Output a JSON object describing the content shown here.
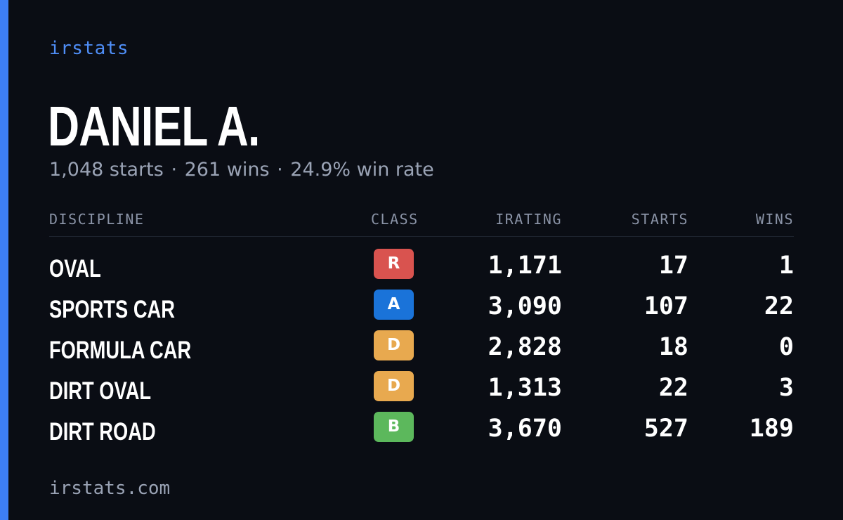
{
  "brand": "irstats",
  "driver": {
    "name": "DANIEL A.",
    "starts": "1,048 starts",
    "wins": "261 wins",
    "win_rate": "24.9% win rate",
    "separator": "·"
  },
  "table": {
    "headers": {
      "discipline": "DISCIPLINE",
      "class": "CLASS",
      "irating": "IRATING",
      "starts": "STARTS",
      "wins": "WINS"
    },
    "rows": [
      {
        "discipline": "OVAL",
        "class": "R",
        "class_color": "#d9534f",
        "irating": "1,171",
        "starts": "17",
        "wins": "1"
      },
      {
        "discipline": "SPORTS CAR",
        "class": "A",
        "class_color": "#1a73d9",
        "irating": "3,090",
        "starts": "107",
        "wins": "22"
      },
      {
        "discipline": "FORMULA CAR",
        "class": "D",
        "class_color": "#e8a94f",
        "irating": "2,828",
        "starts": "18",
        "wins": "0"
      },
      {
        "discipline": "DIRT OVAL",
        "class": "D",
        "class_color": "#e8a94f",
        "irating": "1,313",
        "starts": "22",
        "wins": "3"
      },
      {
        "discipline": "DIRT ROAD",
        "class": "B",
        "class_color": "#5cb85c",
        "irating": "3,670",
        "starts": "527",
        "wins": "189"
      }
    ]
  },
  "footer": {
    "url": "irstats.com"
  },
  "colors": {
    "background": "#0a0d14",
    "accent": "#3d7ff5",
    "muted_text": "#9aa3b5"
  }
}
